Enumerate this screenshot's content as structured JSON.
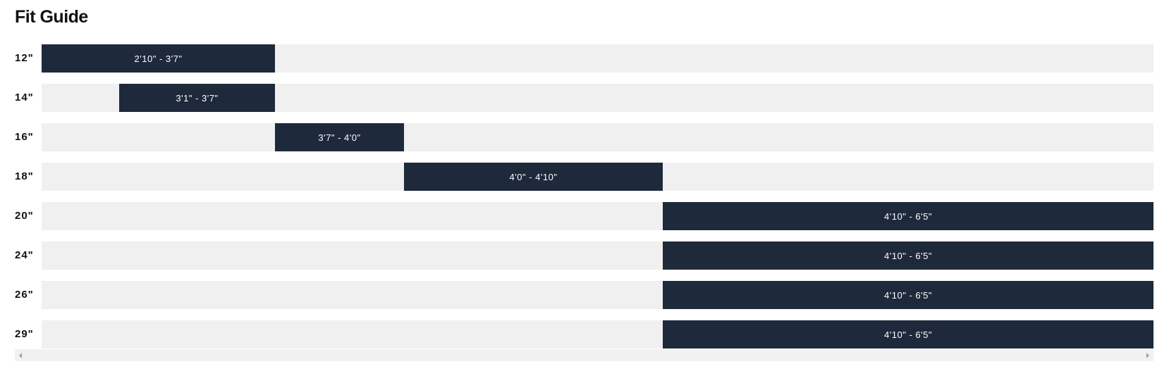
{
  "title": "Fit Guide",
  "rows": [
    {
      "size": "12\"",
      "range": "2'10\" - 3'7\""
    },
    {
      "size": "14\"",
      "range": "3'1\" - 3'7\""
    },
    {
      "size": "16\"",
      "range": "3'7\" - 4'0\""
    },
    {
      "size": "18\"",
      "range": "4'0\" - 4'10\""
    },
    {
      "size": "20\"",
      "range": "4'10\" - 6'5\""
    },
    {
      "size": "24\"",
      "range": "4'10\" - 6'5\""
    },
    {
      "size": "26\"",
      "range": "4'10\" - 6'5\""
    },
    {
      "size": "29\"",
      "range": "4'10\" - 6'5\""
    }
  ]
}
